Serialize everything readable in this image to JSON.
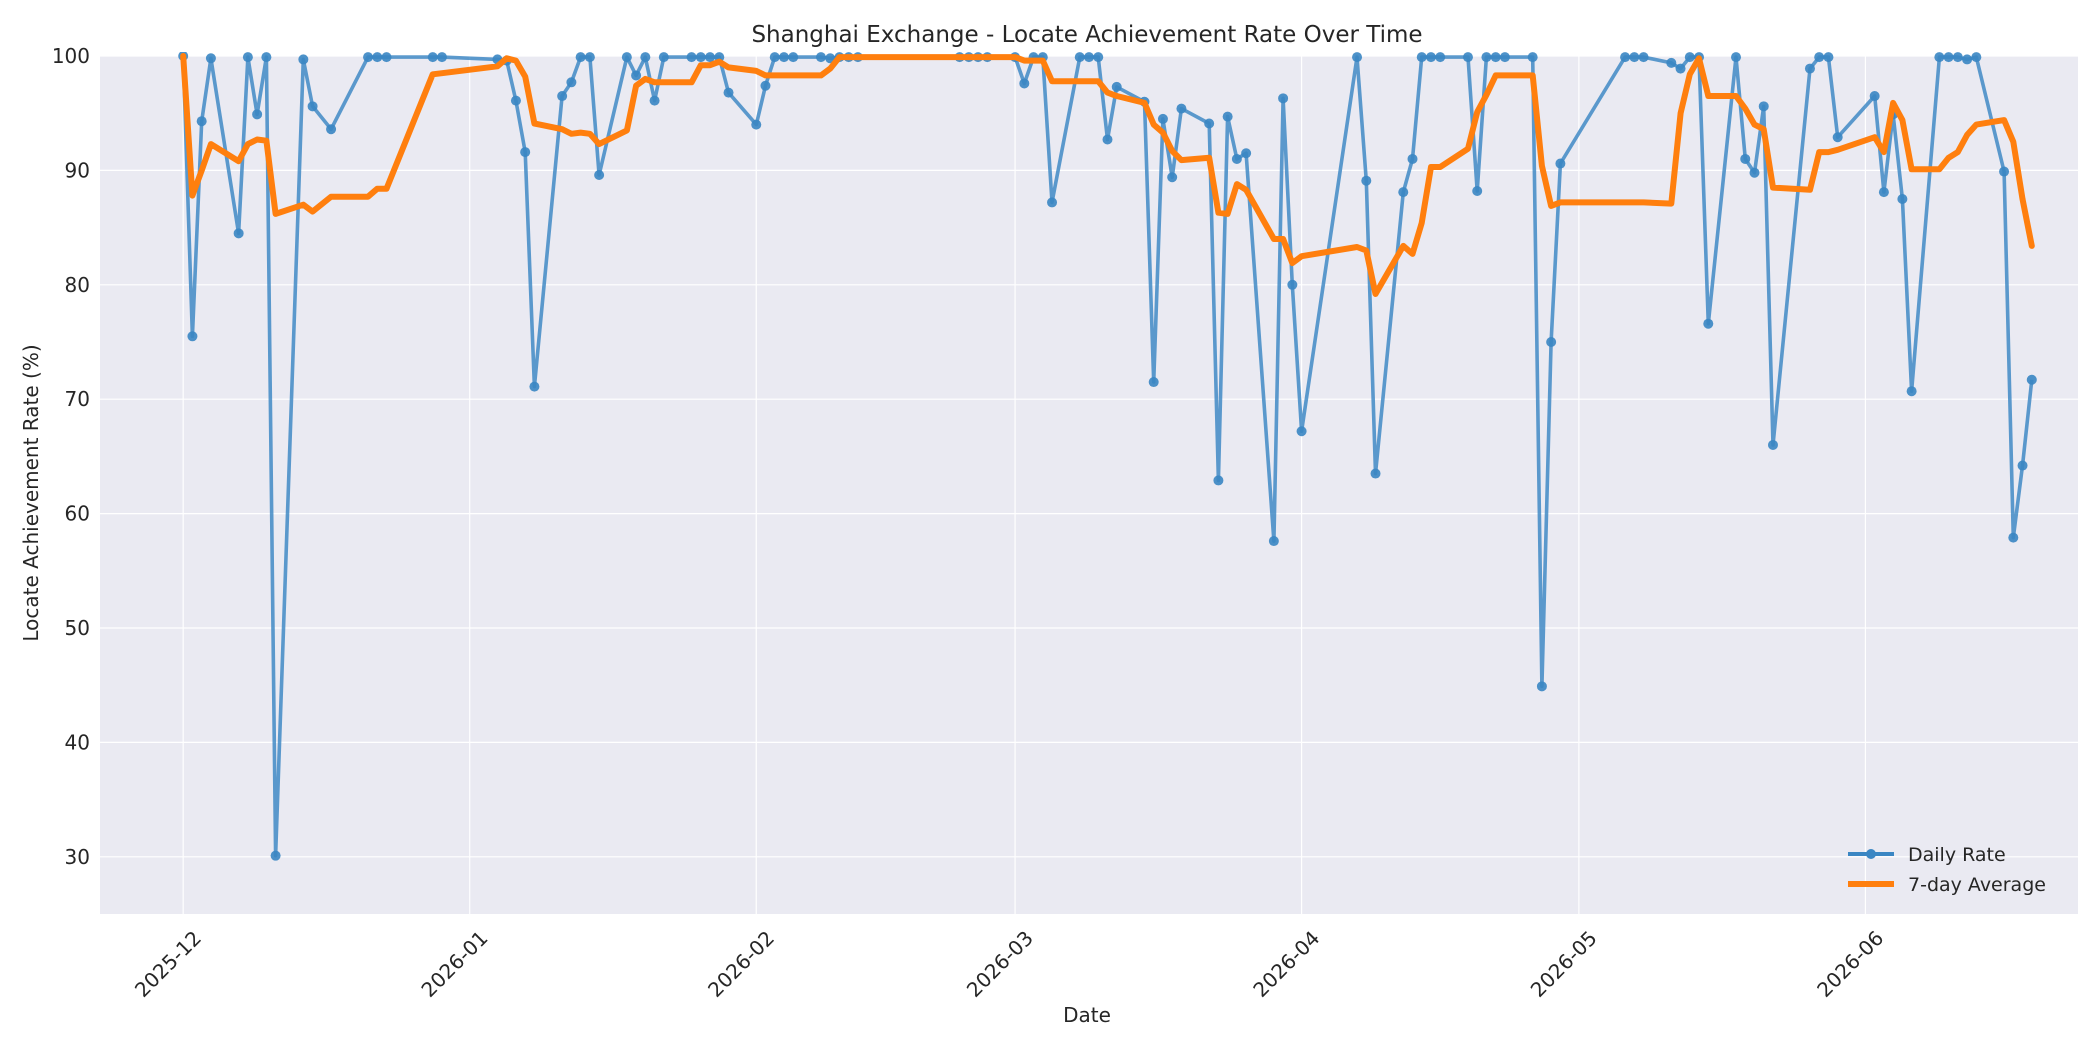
{
  "chart_data": {
    "type": "line",
    "title": "Shanghai Exchange - Locate Achievement Rate Over Time",
    "xlabel": "Date",
    "ylabel": "Locate Achievement Rate (%)",
    "xlim": [
      "2025-11-22",
      "2026-06-24"
    ],
    "ylim": [
      25,
      100
    ],
    "yticks": [
      30,
      40,
      50,
      60,
      70,
      80,
      90,
      100
    ],
    "xticks": [
      "2025-12-01",
      "2026-01-01",
      "2026-02-01",
      "2026-03-01",
      "2026-04-01",
      "2026-05-01",
      "2026-06-01"
    ],
    "xtick_labels": [
      "2025-12",
      "2026-01",
      "2026-02",
      "2026-03",
      "2026-04",
      "2026-05",
      "2026-06"
    ],
    "grid": true,
    "legend_position": "bottom-right",
    "colors": {
      "background": "#eaeaf2",
      "grid": "#ffffff",
      "daily": "#3a86c3",
      "average": "#ff7f0e"
    },
    "series": [
      {
        "name": "Daily Rate",
        "style": "line-markers",
        "points": [
          [
            "2025-12-01",
            100
          ],
          [
            "2025-12-02",
            75.5
          ],
          [
            "2025-12-03",
            94.3
          ],
          [
            "2025-12-04",
            99.8
          ],
          [
            "2025-12-07",
            84.5
          ],
          [
            "2025-12-08",
            99.9
          ],
          [
            "2025-12-09",
            94.9
          ],
          [
            "2025-12-10",
            99.9
          ],
          [
            "2025-12-11",
            30.1
          ],
          [
            "2025-12-14",
            99.7
          ],
          [
            "2025-12-15",
            95.6
          ],
          [
            "2025-12-17",
            93.6
          ],
          [
            "2025-12-21",
            99.9
          ],
          [
            "2025-12-22",
            99.9
          ],
          [
            "2025-12-23",
            99.9
          ],
          [
            "2025-12-28",
            99.9
          ],
          [
            "2025-12-29",
            99.9
          ],
          [
            "2026-01-04",
            99.7
          ],
          [
            "2026-01-05",
            99.6
          ],
          [
            "2026-01-06",
            96.1
          ],
          [
            "2026-01-07",
            91.6
          ],
          [
            "2026-01-08",
            71.1
          ],
          [
            "2026-01-11",
            96.5
          ],
          [
            "2026-01-12",
            97.7
          ],
          [
            "2026-01-13",
            99.9
          ],
          [
            "2026-01-14",
            99.9
          ],
          [
            "2026-01-15",
            89.6
          ],
          [
            "2026-01-18",
            99.9
          ],
          [
            "2026-01-19",
            98.3
          ],
          [
            "2026-01-20",
            99.9
          ],
          [
            "2026-01-21",
            96.1
          ],
          [
            "2026-01-22",
            99.9
          ],
          [
            "2026-01-25",
            99.9
          ],
          [
            "2026-01-26",
            99.9
          ],
          [
            "2026-01-27",
            99.9
          ],
          [
            "2026-01-28",
            99.9
          ],
          [
            "2026-01-29",
            96.8
          ],
          [
            "2026-02-01",
            94.0
          ],
          [
            "2026-02-02",
            97.4
          ],
          [
            "2026-02-03",
            99.9
          ],
          [
            "2026-02-04",
            99.9
          ],
          [
            "2026-02-05",
            99.9
          ],
          [
            "2026-02-08",
            99.9
          ],
          [
            "2026-02-09",
            99.8
          ],
          [
            "2026-02-10",
            99.9
          ],
          [
            "2026-02-11",
            99.9
          ],
          [
            "2026-02-12",
            99.9
          ],
          [
            "2026-02-23",
            99.9
          ],
          [
            "2026-02-24",
            99.9
          ],
          [
            "2026-02-25",
            99.9
          ],
          [
            "2026-02-26",
            99.9
          ],
          [
            "2026-03-01",
            99.9
          ],
          [
            "2026-03-02",
            97.6
          ],
          [
            "2026-03-03",
            99.9
          ],
          [
            "2026-03-04",
            99.9
          ],
          [
            "2026-03-05",
            87.2
          ],
          [
            "2026-03-08",
            99.9
          ],
          [
            "2026-03-09",
            99.9
          ],
          [
            "2026-03-10",
            99.9
          ],
          [
            "2026-03-11",
            92.7
          ],
          [
            "2026-03-12",
            97.3
          ],
          [
            "2026-03-15",
            96.0
          ],
          [
            "2026-03-16",
            71.5
          ],
          [
            "2026-03-17",
            94.5
          ],
          [
            "2026-03-18",
            89.4
          ],
          [
            "2026-03-19",
            95.4
          ],
          [
            "2026-03-22",
            94.1
          ],
          [
            "2026-03-23",
            62.9
          ],
          [
            "2026-03-24",
            94.7
          ],
          [
            "2026-03-25",
            91.0
          ],
          [
            "2026-03-26",
            91.5
          ],
          [
            "2026-03-29",
            57.6
          ],
          [
            "2026-03-30",
            96.3
          ],
          [
            "2026-03-31",
            80.0
          ],
          [
            "2026-04-01",
            67.2
          ],
          [
            "2026-04-07",
            99.9
          ],
          [
            "2026-04-08",
            89.1
          ],
          [
            "2026-04-09",
            63.5
          ],
          [
            "2026-04-12",
            88.1
          ],
          [
            "2026-04-13",
            91.0
          ],
          [
            "2026-04-14",
            99.9
          ],
          [
            "2026-04-15",
            99.9
          ],
          [
            "2026-04-16",
            99.9
          ],
          [
            "2026-04-19",
            99.9
          ],
          [
            "2026-04-20",
            88.2
          ],
          [
            "2026-04-21",
            99.9
          ],
          [
            "2026-04-22",
            99.9
          ],
          [
            "2026-04-23",
            99.9
          ],
          [
            "2026-04-26",
            99.9
          ],
          [
            "2026-04-27",
            44.9
          ],
          [
            "2026-04-28",
            75.0
          ],
          [
            "2026-04-29",
            90.6
          ],
          [
            "2026-05-06",
            99.9
          ],
          [
            "2026-05-07",
            99.9
          ],
          [
            "2026-05-08",
            99.9
          ],
          [
            "2026-05-11",
            99.4
          ],
          [
            "2026-05-12",
            98.9
          ],
          [
            "2026-05-13",
            99.9
          ],
          [
            "2026-05-14",
            99.9
          ],
          [
            "2026-05-15",
            76.6
          ],
          [
            "2026-05-18",
            99.9
          ],
          [
            "2026-05-19",
            91.0
          ],
          [
            "2026-05-20",
            89.8
          ],
          [
            "2026-05-21",
            95.6
          ],
          [
            "2026-05-22",
            66.0
          ],
          [
            "2026-05-26",
            98.9
          ],
          [
            "2026-05-27",
            99.9
          ],
          [
            "2026-05-28",
            99.9
          ],
          [
            "2026-05-29",
            92.9
          ],
          [
            "2026-06-02",
            96.5
          ],
          [
            "2026-06-03",
            88.1
          ],
          [
            "2026-06-04",
            94.9
          ],
          [
            "2026-06-05",
            87.5
          ],
          [
            "2026-06-06",
            70.7
          ],
          [
            "2026-06-09",
            99.9
          ],
          [
            "2026-06-10",
            99.9
          ],
          [
            "2026-06-11",
            99.9
          ],
          [
            "2026-06-12",
            99.7
          ],
          [
            "2026-06-13",
            99.9
          ],
          [
            "2026-06-16",
            89.9
          ],
          [
            "2026-06-17",
            57.9
          ],
          [
            "2026-06-18",
            64.2
          ],
          [
            "2026-06-19",
            71.7
          ]
        ]
      },
      {
        "name": "7-day Average",
        "style": "line",
        "points": [
          [
            "2025-12-01",
            100
          ],
          [
            "2025-12-02",
            87.8
          ],
          [
            "2025-12-03",
            90.0
          ],
          [
            "2025-12-04",
            92.3
          ],
          [
            "2025-12-07",
            90.8
          ],
          [
            "2025-12-08",
            92.3
          ],
          [
            "2025-12-09",
            92.7
          ],
          [
            "2025-12-10",
            92.6
          ],
          [
            "2025-12-11",
            86.2
          ],
          [
            "2025-12-14",
            87.0
          ],
          [
            "2025-12-15",
            86.4
          ],
          [
            "2025-12-17",
            87.7
          ],
          [
            "2025-12-21",
            87.7
          ],
          [
            "2025-12-22",
            88.4
          ],
          [
            "2025-12-23",
            88.4
          ],
          [
            "2025-12-28",
            98.4
          ],
          [
            "2025-12-29",
            98.5
          ],
          [
            "2026-01-04",
            99.1
          ],
          [
            "2026-01-05",
            99.8
          ],
          [
            "2026-01-06",
            99.6
          ],
          [
            "2026-01-07",
            98.2
          ],
          [
            "2026-01-08",
            94.1
          ],
          [
            "2026-01-11",
            93.6
          ],
          [
            "2026-01-12",
            93.2
          ],
          [
            "2026-01-13",
            93.3
          ],
          [
            "2026-01-14",
            93.2
          ],
          [
            "2026-01-15",
            92.3
          ],
          [
            "2026-01-18",
            93.5
          ],
          [
            "2026-01-19",
            97.4
          ],
          [
            "2026-01-20",
            98.0
          ],
          [
            "2026-01-21",
            97.7
          ],
          [
            "2026-01-22",
            97.7
          ],
          [
            "2026-01-25",
            97.7
          ],
          [
            "2026-01-26",
            99.2
          ],
          [
            "2026-01-27",
            99.2
          ],
          [
            "2026-01-28",
            99.5
          ],
          [
            "2026-01-29",
            99.0
          ],
          [
            "2026-02-01",
            98.7
          ],
          [
            "2026-02-02",
            98.3
          ],
          [
            "2026-02-03",
            98.3
          ],
          [
            "2026-02-04",
            98.3
          ],
          [
            "2026-02-05",
            98.3
          ],
          [
            "2026-02-08",
            98.3
          ],
          [
            "2026-02-09",
            98.9
          ],
          [
            "2026-02-10",
            99.9
          ],
          [
            "2026-02-11",
            99.9
          ],
          [
            "2026-02-12",
            99.9
          ],
          [
            "2026-02-23",
            99.9
          ],
          [
            "2026-02-24",
            99.9
          ],
          [
            "2026-02-25",
            99.9
          ],
          [
            "2026-02-26",
            99.9
          ],
          [
            "2026-03-01",
            99.9
          ],
          [
            "2026-03-02",
            99.6
          ],
          [
            "2026-03-03",
            99.6
          ],
          [
            "2026-03-04",
            99.6
          ],
          [
            "2026-03-05",
            97.8
          ],
          [
            "2026-03-08",
            97.8
          ],
          [
            "2026-03-09",
            97.8
          ],
          [
            "2026-03-10",
            97.8
          ],
          [
            "2026-03-11",
            96.8
          ],
          [
            "2026-03-12",
            96.5
          ],
          [
            "2026-03-15",
            95.9
          ],
          [
            "2026-03-16",
            94.0
          ],
          [
            "2026-03-17",
            93.3
          ],
          [
            "2026-03-18",
            91.7
          ],
          [
            "2026-03-19",
            90.9
          ],
          [
            "2026-03-22",
            91.1
          ],
          [
            "2026-03-23",
            86.3
          ],
          [
            "2026-03-24",
            86.2
          ],
          [
            "2026-03-25",
            88.8
          ],
          [
            "2026-03-26",
            88.3
          ],
          [
            "2026-03-29",
            84.0
          ],
          [
            "2026-03-30",
            84.0
          ],
          [
            "2026-03-31",
            81.9
          ],
          [
            "2026-04-01",
            82.5
          ],
          [
            "2026-04-07",
            83.3
          ],
          [
            "2026-04-08",
            83.0
          ],
          [
            "2026-04-09",
            79.2
          ],
          [
            "2026-04-12",
            83.4
          ],
          [
            "2026-04-13",
            82.7
          ],
          [
            "2026-04-14",
            85.4
          ],
          [
            "2026-04-15",
            90.3
          ],
          [
            "2026-04-16",
            90.3
          ],
          [
            "2026-04-19",
            91.9
          ],
          [
            "2026-04-20",
            95.1
          ],
          [
            "2026-04-21",
            96.6
          ],
          [
            "2026-04-22",
            98.3
          ],
          [
            "2026-04-23",
            98.3
          ],
          [
            "2026-04-26",
            98.3
          ],
          [
            "2026-04-27",
            90.4
          ],
          [
            "2026-04-28",
            86.9
          ],
          [
            "2026-04-29",
            87.2
          ],
          [
            "2026-05-06",
            87.2
          ],
          [
            "2026-05-07",
            87.2
          ],
          [
            "2026-05-08",
            87.2
          ],
          [
            "2026-05-11",
            87.1
          ],
          [
            "2026-05-12",
            95.0
          ],
          [
            "2026-05-13",
            98.4
          ],
          [
            "2026-05-14",
            99.8
          ],
          [
            "2026-05-15",
            96.5
          ],
          [
            "2026-05-18",
            96.5
          ],
          [
            "2026-05-19",
            95.4
          ],
          [
            "2026-05-20",
            94.0
          ],
          [
            "2026-05-21",
            93.6
          ],
          [
            "2026-05-22",
            88.5
          ],
          [
            "2026-05-26",
            88.3
          ],
          [
            "2026-05-27",
            91.6
          ],
          [
            "2026-05-28",
            91.6
          ],
          [
            "2026-05-29",
            91.8
          ],
          [
            "2026-06-02",
            92.9
          ],
          [
            "2026-06-03",
            91.6
          ],
          [
            "2026-06-04",
            95.9
          ],
          [
            "2026-06-05",
            94.4
          ],
          [
            "2026-06-06",
            90.1
          ],
          [
            "2026-06-09",
            90.1
          ],
          [
            "2026-06-10",
            91.1
          ],
          [
            "2026-06-11",
            91.6
          ],
          [
            "2026-06-12",
            93.1
          ],
          [
            "2026-06-13",
            94.0
          ],
          [
            "2026-06-16",
            94.4
          ],
          [
            "2026-06-17",
            92.5
          ],
          [
            "2026-06-18",
            87.5
          ],
          [
            "2026-06-19",
            83.4
          ]
        ]
      }
    ]
  }
}
